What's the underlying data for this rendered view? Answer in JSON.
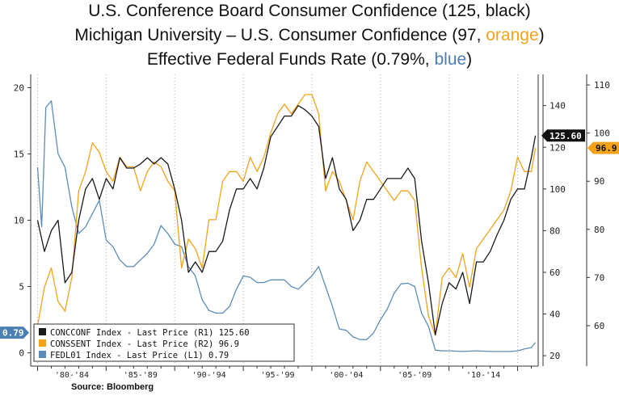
{
  "titles": {
    "line1": "U.S. Conference Board Consumer Confidence (125, black)",
    "line2_pre": "Michigan University – U.S. Consumer Confidence (97, ",
    "line2_color": "orange",
    "line2_post": ")",
    "line3_pre": "Effective Federal Funds Rate (0.79%, ",
    "line3_color": "blue",
    "line3_post": ")"
  },
  "source": "Source: Bloomberg",
  "colors": {
    "black": "#1a1a1a",
    "orange": "#f2a31b",
    "blue": "#5b8db8"
  },
  "chart_data": {
    "type": "line",
    "title": "",
    "x_tick_labels": [
      "'80-'84",
      "'85-'89",
      "'90-'94",
      "'95-'99",
      "'00-'04",
      "'05-'09",
      "'10-'14"
    ],
    "x_range": [
      1979.5,
      2016.5
    ],
    "axes": {
      "L1": {
        "range": [
          -1,
          21
        ],
        "ticks": [
          0,
          5,
          10,
          15,
          20
        ]
      },
      "R1": {
        "range": [
          15,
          155
        ],
        "ticks": [
          20,
          40,
          60,
          80,
          100,
          120,
          140
        ]
      },
      "R2": {
        "range": [
          51.6,
          112.2
        ],
        "ticks": [
          60,
          70,
          80,
          90,
          100,
          110
        ]
      }
    },
    "end_labels": {
      "R1": "125.60",
      "R2": "96.9",
      "L1": "0.79"
    },
    "legend": [
      {
        "label": "CONCCONF Index - Last Price (R1) 125.60",
        "series": "concconf"
      },
      {
        "label": "CONSSENT Index - Last Price (R2) 96.9",
        "series": "conssent"
      },
      {
        "label": "FEDL01 Index - Last Price (L1)   0.79",
        "series": "fedl01"
      }
    ],
    "legend_position": "bottom-left",
    "grid": "dotted-vertical-only",
    "series": [
      {
        "id": "concconf",
        "axis": "R1",
        "color": "#1a1a1a",
        "x": [
          1980.0,
          1980.5,
          1981.0,
          1981.5,
          1982.0,
          1982.5,
          1983.0,
          1983.5,
          1984.0,
          1984.5,
          1985.0,
          1985.5,
          1986.0,
          1986.5,
          1987.0,
          1987.5,
          1988.0,
          1988.5,
          1989.0,
          1989.5,
          1990.0,
          1990.5,
          1991.0,
          1991.5,
          1992.0,
          1992.5,
          1993.0,
          1993.5,
          1994.0,
          1994.5,
          1995.0,
          1995.5,
          1996.0,
          1996.5,
          1997.0,
          1997.5,
          1998.0,
          1998.5,
          1999.0,
          1999.5,
          2000.0,
          2000.5,
          2001.0,
          2001.5,
          2002.0,
          2002.5,
          2003.0,
          2003.5,
          2004.0,
          2004.5,
          2005.0,
          2005.5,
          2006.0,
          2006.5,
          2007.0,
          2007.5,
          2008.0,
          2008.5,
          2009.0,
          2009.5,
          2010.0,
          2010.5,
          2011.0,
          2011.5,
          2012.0,
          2012.5,
          2013.0,
          2013.5,
          2014.0,
          2014.5,
          2015.0,
          2015.5,
          2016.0,
          2016.3
        ],
        "values": [
          85,
          70,
          80,
          85,
          55,
          60,
          85,
          100,
          105,
          95,
          105,
          100,
          115,
          110,
          110,
          112,
          115,
          112,
          115,
          112,
          100,
          85,
          60,
          65,
          60,
          70,
          70,
          75,
          90,
          100,
          100,
          105,
          100,
          110,
          125,
          130,
          135,
          135,
          140,
          138,
          135,
          130,
          105,
          115,
          100,
          95,
          80,
          85,
          95,
          95,
          100,
          105,
          105,
          105,
          110,
          105,
          75,
          55,
          30,
          45,
          55,
          52,
          60,
          45,
          65,
          65,
          70,
          78,
          85,
          95,
          100,
          100,
          115,
          125.6
        ]
      },
      {
        "id": "conssent",
        "axis": "R2",
        "color": "#f2a31b",
        "x": [
          1980.0,
          1980.5,
          1981.0,
          1981.5,
          1982.0,
          1982.5,
          1983.0,
          1983.5,
          1984.0,
          1984.5,
          1985.0,
          1985.5,
          1986.0,
          1986.5,
          1987.0,
          1987.5,
          1988.0,
          1988.5,
          1989.0,
          1989.5,
          1990.0,
          1990.5,
          1991.0,
          1991.5,
          1992.0,
          1992.5,
          1993.0,
          1993.5,
          1994.0,
          1994.5,
          1995.0,
          1995.5,
          1996.0,
          1996.5,
          1997.0,
          1997.5,
          1998.0,
          1998.5,
          1999.0,
          1999.5,
          2000.0,
          2000.5,
          2001.0,
          2001.5,
          2002.0,
          2002.5,
          2003.0,
          2003.5,
          2004.0,
          2004.5,
          2005.0,
          2005.5,
          2006.0,
          2006.5,
          2007.0,
          2007.5,
          2008.0,
          2008.5,
          2009.0,
          2009.5,
          2010.0,
          2010.5,
          2011.0,
          2011.5,
          2012.0,
          2012.5,
          2013.0,
          2013.5,
          2014.0,
          2014.5,
          2015.0,
          2015.5,
          2016.0,
          2016.3
        ],
        "values": [
          60,
          68,
          72,
          65,
          63,
          70,
          88,
          92,
          98,
          96,
          92,
          90,
          95,
          93,
          93,
          88,
          92,
          94,
          93,
          90,
          88,
          72,
          78,
          76,
          72,
          82,
          82,
          90,
          92,
          92,
          90,
          95,
          92,
          95,
          100,
          104,
          106,
          104,
          106,
          108,
          108,
          104,
          88,
          92,
          90,
          86,
          82,
          90,
          94,
          92,
          90,
          88,
          86,
          88,
          88,
          86,
          72,
          62,
          58,
          70,
          72,
          70,
          75,
          68,
          76,
          78,
          80,
          82,
          84,
          88,
          95,
          92,
          92,
          96.9
        ]
      },
      {
        "id": "fedl01",
        "axis": "L1",
        "color": "#5b8db8",
        "x": [
          1980.0,
          1980.3,
          1980.6,
          1981.0,
          1981.5,
          1982.0,
          1982.5,
          1983.0,
          1983.5,
          1984.0,
          1984.5,
          1985.0,
          1985.5,
          1986.0,
          1986.5,
          1987.0,
          1987.5,
          1988.0,
          1988.5,
          1989.0,
          1989.5,
          1990.0,
          1990.5,
          1991.0,
          1991.5,
          1992.0,
          1992.5,
          1993.0,
          1993.5,
          1994.0,
          1994.5,
          1995.0,
          1995.5,
          1996.0,
          1996.5,
          1997.0,
          1997.5,
          1998.0,
          1998.5,
          1999.0,
          1999.5,
          2000.0,
          2000.5,
          2001.0,
          2001.5,
          2002.0,
          2002.5,
          2003.0,
          2003.5,
          2004.0,
          2004.5,
          2005.0,
          2005.5,
          2006.0,
          2006.5,
          2007.0,
          2007.5,
          2008.0,
          2008.5,
          2009.0,
          2009.5,
          2010.0,
          2011.0,
          2012.0,
          2013.0,
          2014.0,
          2014.5,
          2015.0,
          2015.5,
          2016.0,
          2016.3
        ],
        "values": [
          14,
          9.5,
          18.5,
          19,
          15,
          14,
          11,
          9,
          9.5,
          10.5,
          11.5,
          8.5,
          8,
          7,
          6.5,
          6.5,
          7,
          7.5,
          8.2,
          9.6,
          9,
          8.2,
          8,
          6.5,
          5.8,
          4,
          3.2,
          3,
          3,
          3.5,
          4.8,
          5.8,
          5.7,
          5.3,
          5.3,
          5.5,
          5.5,
          5.5,
          5,
          4.8,
          5.3,
          5.8,
          6.5,
          5,
          3.5,
          1.8,
          1.7,
          1.2,
          1,
          1,
          1.5,
          2.5,
          3.3,
          4.5,
          5.2,
          5.25,
          5,
          3,
          2,
          0.2,
          0.15,
          0.15,
          0.1,
          0.15,
          0.1,
          0.1,
          0.1,
          0.15,
          0.3,
          0.4,
          0.79
        ]
      }
    ]
  }
}
